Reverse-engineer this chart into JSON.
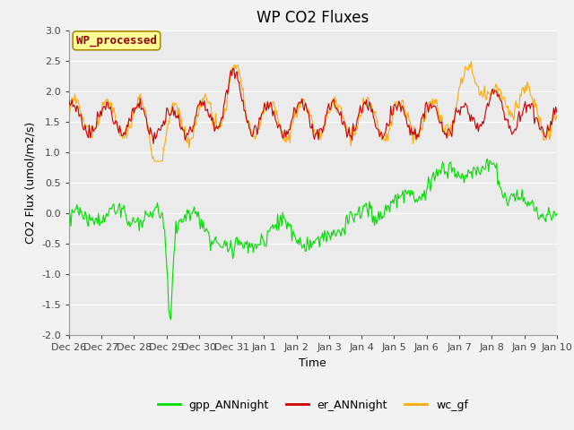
{
  "title": "WP CO2 Fluxes",
  "xlabel": "Time",
  "ylabel": "CO2 Flux (umol/m2/s)",
  "ylim": [
    -2.0,
    3.0
  ],
  "yticks": [
    -2.0,
    -1.5,
    -1.0,
    -0.5,
    0.0,
    0.5,
    1.0,
    1.5,
    2.0,
    2.5,
    3.0
  ],
  "background_color": "#ebebeb",
  "fig_background_color": "#f2f2f2",
  "grid_color": "#ffffff",
  "line_green": "#00dd00",
  "line_red": "#cc0000",
  "line_orange": "#ffaa00",
  "legend_box_label": "WP_processed",
  "legend_box_facecolor": "#ffff99",
  "legend_box_edgecolor": "#aa8800",
  "legend_box_textcolor": "#990000",
  "n_points": 480,
  "xtick_labels": [
    "Dec 26",
    "Dec 27",
    "Dec 28",
    "Dec 29",
    "Dec 30",
    "Dec 31",
    "Jan 1",
    "Jan 2",
    "Jan 3",
    "Jan 4",
    "Jan 5",
    "Jan 6",
    "Jan 7",
    "Jan 8",
    "Jan 9",
    "Jan 10"
  ],
  "title_fontsize": 12,
  "axis_label_fontsize": 9,
  "tick_fontsize": 8,
  "legend_fontsize": 9
}
